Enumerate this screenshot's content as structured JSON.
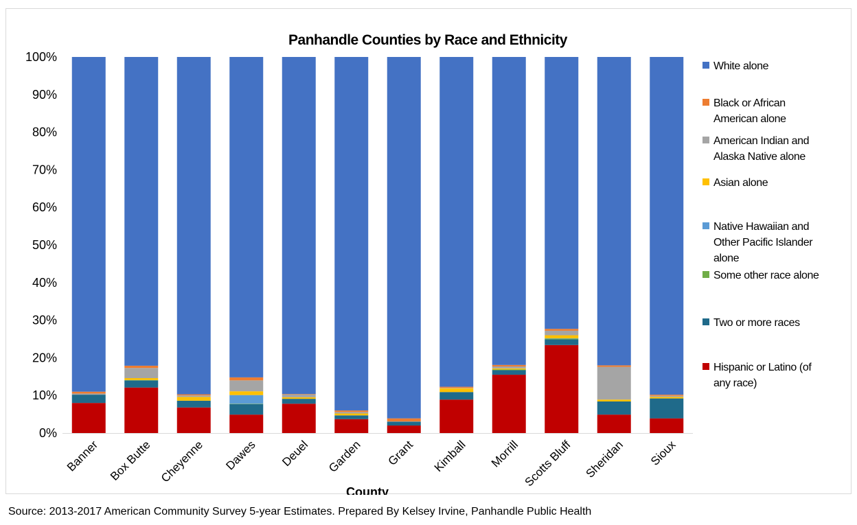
{
  "chart_data": {
    "type": "bar",
    "stacked": true,
    "normalized": true,
    "title": "Panhandle Counties by Race and Ethnicity",
    "xlabel": "County",
    "ylabel": "",
    "ylim": [
      0,
      100
    ],
    "yticks": [
      "0%",
      "10%",
      "20%",
      "30%",
      "40%",
      "50%",
      "60%",
      "70%",
      "80%",
      "90%",
      "100%"
    ],
    "categories": [
      "Banner",
      "Box Butte",
      "Cheyenne",
      "Dawes",
      "Deuel",
      "Garden",
      "Grant",
      "Kimball",
      "Morrill",
      "Scotts Bluff",
      "Sheridan",
      "Sioux"
    ],
    "legend_position": "right",
    "grid": false,
    "series": [
      {
        "name": "Hispanic or Latino (of any race)",
        "color": "#C00000",
        "values": [
          8.0,
          12.1,
          6.8,
          4.9,
          7.8,
          3.7,
          2.0,
          8.9,
          15.5,
          23.4,
          4.9,
          3.9
        ]
      },
      {
        "name": "Two or more races",
        "color": "#1F6A8A",
        "values": [
          2.2,
          1.9,
          1.8,
          2.8,
          1.3,
          1.0,
          1.0,
          2.0,
          1.2,
          1.5,
          3.5,
          5.3
        ]
      },
      {
        "name": "Some other race alone",
        "color": "#70AD47",
        "values": [
          0.0,
          0.1,
          0.0,
          0.1,
          0.0,
          0.0,
          0.0,
          0.0,
          0.2,
          0.2,
          0.0,
          0.0
        ]
      },
      {
        "name": "Native Hawaiian and Other Pacific Islander alone",
        "color": "#5B9BD5",
        "values": [
          0.0,
          0.0,
          0.0,
          2.3,
          0.0,
          0.0,
          0.0,
          0.0,
          0.0,
          0.1,
          0.0,
          0.0
        ]
      },
      {
        "name": "Asian alone",
        "color": "#FFC000",
        "values": [
          0.0,
          0.5,
          1.0,
          1.0,
          0.4,
          0.5,
          0.0,
          1.0,
          0.3,
          0.8,
          0.5,
          0.4
        ]
      },
      {
        "name": "American Indian and Alaska Native alone",
        "color": "#A5A5A5",
        "values": [
          0.3,
          2.7,
          0.4,
          2.9,
          0.8,
          0.4,
          0.1,
          0.1,
          0.5,
          1.2,
          8.7,
          0.3
        ]
      },
      {
        "name": "Black or African American alone",
        "color": "#ED7D31",
        "values": [
          0.5,
          0.6,
          0.3,
          0.8,
          0.1,
          0.4,
          0.8,
          0.3,
          0.4,
          0.5,
          0.4,
          0.3
        ]
      },
      {
        "name": "White alone",
        "color": "#4472C4",
        "values": [
          89.0,
          82.1,
          89.7,
          85.2,
          89.6,
          94.0,
          96.1,
          87.7,
          81.9,
          72.3,
          82.0,
          89.8
        ]
      }
    ],
    "legend_order": [
      "White alone",
      "Black or African American alone",
      "American Indian and Alaska Native alone",
      "Asian alone",
      "Native Hawaiian and Other Pacific Islander alone",
      "Some other race alone",
      "Two or more races",
      "Hispanic or Latino (of any race)"
    ],
    "legend_lines": [
      [
        "White alone"
      ],
      [
        "Black or African",
        "American alone"
      ],
      [
        "American Indian and",
        "Alaska Native alone"
      ],
      [
        "Asian alone"
      ],
      [
        "Native Hawaiian and",
        "Other Pacific Islander",
        "alone"
      ],
      [
        "Some other race alone"
      ],
      [
        "Two or more races"
      ],
      [
        "Hispanic or Latino (of",
        "any race)"
      ]
    ]
  },
  "source_note": "Source: 2013-2017 American Community Survey 5-year Estimates. Prepared By Kelsey Irvine, Panhandle Public Health"
}
